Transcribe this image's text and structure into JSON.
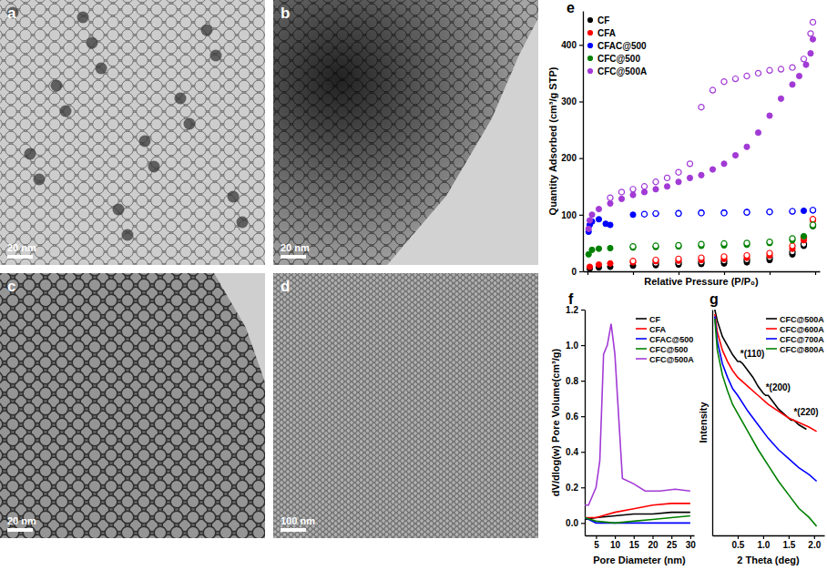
{
  "panels": [
    {
      "label": "a",
      "scale_bar": "20 nm"
    },
    {
      "label": "b",
      "scale_bar": "20 nm"
    },
    {
      "label": "c",
      "scale_bar": "20 nm"
    },
    {
      "label": "d",
      "scale_bar": "100 nm"
    }
  ],
  "chart_data": [
    {
      "panel": "e",
      "type": "scatter",
      "xlabel": "Relative Pressure (P/P₀)",
      "ylabel": "Quantity Adsorbed (cm³/g STP)",
      "xlim": [
        -0.02,
        1.02
      ],
      "ylim": [
        0,
        460
      ],
      "xticks": [
        0,
        0.2,
        0.4,
        0.6,
        0.8,
        1
      ],
      "yticks": [
        0,
        100,
        200,
        300,
        400
      ],
      "tick_labels": "y",
      "legend": "upper left",
      "marker": "circle",
      "series": [
        {
          "name": "CF",
          "color": "#000000",
          "x": [
            0.01,
            0.05,
            0.1,
            0.2,
            0.3,
            0.4,
            0.5,
            0.6,
            0.7,
            0.8,
            0.9,
            0.95,
            0.99
          ],
          "values": [
            5,
            7,
            8,
            10,
            11,
            12,
            13,
            14,
            16,
            20,
            30,
            45,
            80
          ],
          "desorption_x": [
            0.99,
            0.95,
            0.9,
            0.8,
            0.7,
            0.6,
            0.5,
            0.4,
            0.3
          ],
          "desorption": [
            82,
            48,
            34,
            24,
            20,
            18,
            16,
            15,
            14
          ]
        },
        {
          "name": "CFA",
          "color": "#ff0000",
          "x": [
            0.01,
            0.05,
            0.1,
            0.2,
            0.3,
            0.4,
            0.5,
            0.6,
            0.7,
            0.8,
            0.9,
            0.95,
            0.99
          ],
          "values": [
            8,
            12,
            14,
            16,
            18,
            19,
            20,
            22,
            24,
            28,
            40,
            55,
            90
          ],
          "desorption_x": [
            0.99,
            0.95,
            0.9,
            0.8,
            0.7,
            0.6,
            0.5,
            0.4,
            0.3,
            0.2
          ],
          "desorption": [
            92,
            60,
            45,
            32,
            28,
            26,
            24,
            22,
            20,
            18
          ]
        },
        {
          "name": "CFAC@500",
          "color": "#0000ff",
          "x": [
            0.005,
            0.01,
            0.02,
            0.05,
            0.08,
            0.1,
            0.2,
            0.3,
            0.4,
            0.5,
            0.6,
            0.7,
            0.8,
            0.9,
            0.95,
            0.99
          ],
          "values": [
            70,
            82,
            88,
            92,
            84,
            82,
            100,
            102,
            103,
            104,
            104,
            105,
            105,
            106,
            107,
            108
          ],
          "desorption_x": [
            0.99,
            0.9,
            0.8,
            0.7,
            0.6,
            0.5,
            0.4,
            0.3,
            0.25
          ],
          "desorption": [
            108,
            106,
            105,
            104,
            103,
            103,
            102,
            102,
            101
          ]
        },
        {
          "name": "CFC@500",
          "color": "#008000",
          "x": [
            0.005,
            0.02,
            0.05,
            0.1,
            0.2,
            0.3,
            0.4,
            0.5,
            0.6,
            0.7,
            0.8,
            0.9,
            0.95,
            0.99
          ],
          "values": [
            30,
            38,
            40,
            41,
            42,
            43,
            44,
            45,
            46,
            47,
            50,
            55,
            62,
            80
          ],
          "desorption_x": [
            0.99,
            0.9,
            0.8,
            0.7,
            0.6,
            0.5,
            0.4,
            0.3,
            0.2
          ],
          "desorption": [
            82,
            58,
            52,
            50,
            49,
            48,
            46,
            45,
            44
          ]
        },
        {
          "name": "CFC@500A",
          "color": "#a23ad6",
          "x": [
            0.005,
            0.01,
            0.02,
            0.05,
            0.1,
            0.15,
            0.2,
            0.25,
            0.3,
            0.35,
            0.4,
            0.45,
            0.5,
            0.55,
            0.6,
            0.65,
            0.7,
            0.75,
            0.8,
            0.85,
            0.9,
            0.93,
            0.96,
            0.98,
            0.99
          ],
          "values": [
            75,
            90,
            100,
            110,
            120,
            128,
            135,
            140,
            145,
            150,
            158,
            165,
            170,
            180,
            190,
            205,
            220,
            245,
            275,
            305,
            330,
            345,
            365,
            385,
            410
          ],
          "desorption_x": [
            0.99,
            0.98,
            0.95,
            0.9,
            0.85,
            0.8,
            0.75,
            0.7,
            0.65,
            0.6,
            0.55,
            0.5,
            0.45,
            0.4,
            0.35,
            0.3,
            0.25,
            0.2,
            0.15,
            0.1
          ],
          "desorption": [
            440,
            420,
            375,
            360,
            357,
            355,
            350,
            345,
            340,
            335,
            320,
            290,
            190,
            175,
            165,
            158,
            150,
            145,
            140,
            130
          ]
        }
      ]
    },
    {
      "panel": "f",
      "type": "line",
      "xlabel": "Pore Diameter (nm)",
      "ylabel": "dV/dlog(w) Pore Volume(cm³/g)",
      "xlim": [
        2,
        31
      ],
      "ylim": [
        -0.07,
        1.2
      ],
      "xticks": [
        5,
        10,
        15,
        20,
        25,
        30
      ],
      "yticks": [
        {
          "value": 0,
          "label": "0.0"
        },
        {
          "value": 0.2,
          "label": "0.2"
        },
        {
          "value": 0.4,
          "label": "0.4"
        },
        {
          "value": 0.6,
          "label": "0.6"
        },
        {
          "value": 0.8,
          "label": "0.8"
        },
        {
          "value": 1,
          "label": "1.0"
        },
        {
          "value": 1.2,
          "label": "1.2"
        }
      ],
      "legend": "upper right",
      "series": [
        {
          "name": "CF",
          "color": "#000000",
          "x": [
            2,
            5,
            10,
            15,
            20,
            25,
            30
          ],
          "values": [
            0.02,
            0.03,
            0.04,
            0.05,
            0.05,
            0.06,
            0.06
          ]
        },
        {
          "name": "CFA",
          "color": "#ff0000",
          "x": [
            2,
            5,
            10,
            15,
            20,
            25,
            30
          ],
          "values": [
            0.03,
            0.03,
            0.06,
            0.08,
            0.1,
            0.11,
            0.11
          ]
        },
        {
          "name": "CFAC@500",
          "color": "#0000ff",
          "x": [
            2,
            5,
            10,
            15,
            20,
            25,
            30
          ],
          "values": [
            0.03,
            0,
            0,
            0,
            0,
            0,
            0
          ]
        },
        {
          "name": "CFC@500",
          "color": "#008000",
          "x": [
            2,
            5,
            10,
            15,
            20,
            25,
            30
          ],
          "values": [
            0.03,
            0.01,
            0,
            0.01,
            0.02,
            0.03,
            0.04
          ]
        },
        {
          "name": "CFC@500A",
          "color": "#a23ad6",
          "x": [
            2,
            3,
            4,
            5,
            6,
            7,
            8,
            9,
            10,
            11,
            12,
            15,
            18,
            22,
            26,
            30
          ],
          "values": [
            0.1,
            0.1,
            0.15,
            0.2,
            0.35,
            0.95,
            1.0,
            1.12,
            0.95,
            0.6,
            0.25,
            0.22,
            0.18,
            0.18,
            0.19,
            0.18
          ]
        }
      ]
    },
    {
      "panel": "g",
      "type": "line",
      "xlabel": "2 Theta (deg)",
      "ylabel": "Intensity",
      "xlim": [
        0,
        2.2
      ],
      "ylim": [
        0,
        100
      ],
      "xticks": [
        0.5,
        {
          "value": 1,
          "label": "1.0"
        },
        1.5,
        {
          "value": 2,
          "label": "2.0"
        }
      ],
      "yticks": [],
      "tick_labels": "x",
      "legend": "upper right",
      "series": [
        {
          "name": "CFC@500A",
          "color": "#000000",
          "x": [
            0.05,
            0.1,
            0.2,
            0.3,
            0.4,
            0.5,
            0.55,
            0.6,
            0.7,
            0.8,
            0.9,
            1.0,
            1.05,
            1.1,
            1.2,
            1.3,
            1.4,
            1.5,
            1.55,
            1.6,
            1.7,
            1.85
          ],
          "values": [
            100,
            95,
            88,
            84,
            80,
            77,
            77,
            76,
            73,
            70,
            66,
            63,
            62,
            62,
            59,
            56,
            54,
            52,
            51,
            51,
            49,
            47
          ]
        },
        {
          "name": "CFC@600A",
          "color": "#ff0000",
          "x": [
            0.05,
            0.1,
            0.2,
            0.3,
            0.4,
            0.5,
            0.7,
            0.9,
            1.1,
            1.3,
            1.5,
            1.7,
            1.9,
            2.05
          ],
          "values": [
            98,
            90,
            82,
            77,
            73,
            70,
            66,
            62,
            58,
            55,
            52,
            50,
            48,
            46
          ]
        },
        {
          "name": "CFC@700A",
          "color": "#0000ff",
          "x": [
            0.05,
            0.1,
            0.2,
            0.3,
            0.4,
            0.5,
            0.7,
            0.9,
            1.1,
            1.3,
            1.5,
            1.7,
            1.9,
            2.05
          ],
          "values": [
            97,
            86,
            76,
            70,
            65,
            62,
            55,
            49,
            43,
            38,
            34,
            30,
            27,
            24
          ]
        },
        {
          "name": "CFC@800A",
          "color": "#008000",
          "x": [
            0.05,
            0.1,
            0.2,
            0.3,
            0.4,
            0.5,
            0.7,
            0.9,
            1.1,
            1.3,
            1.5,
            1.7,
            1.9,
            2.05
          ],
          "values": [
            96,
            82,
            71,
            64,
            58,
            54,
            46,
            38,
            31,
            24,
            18,
            12,
            8,
            4
          ]
        }
      ],
      "annotations": [
        {
          "text": "*(110)",
          "x": 0.55,
          "y": 78
        },
        {
          "text": "*(200)",
          "x": 1.05,
          "y": 63
        },
        {
          "text": "*(220)",
          "x": 1.6,
          "y": 52
        }
      ]
    }
  ]
}
